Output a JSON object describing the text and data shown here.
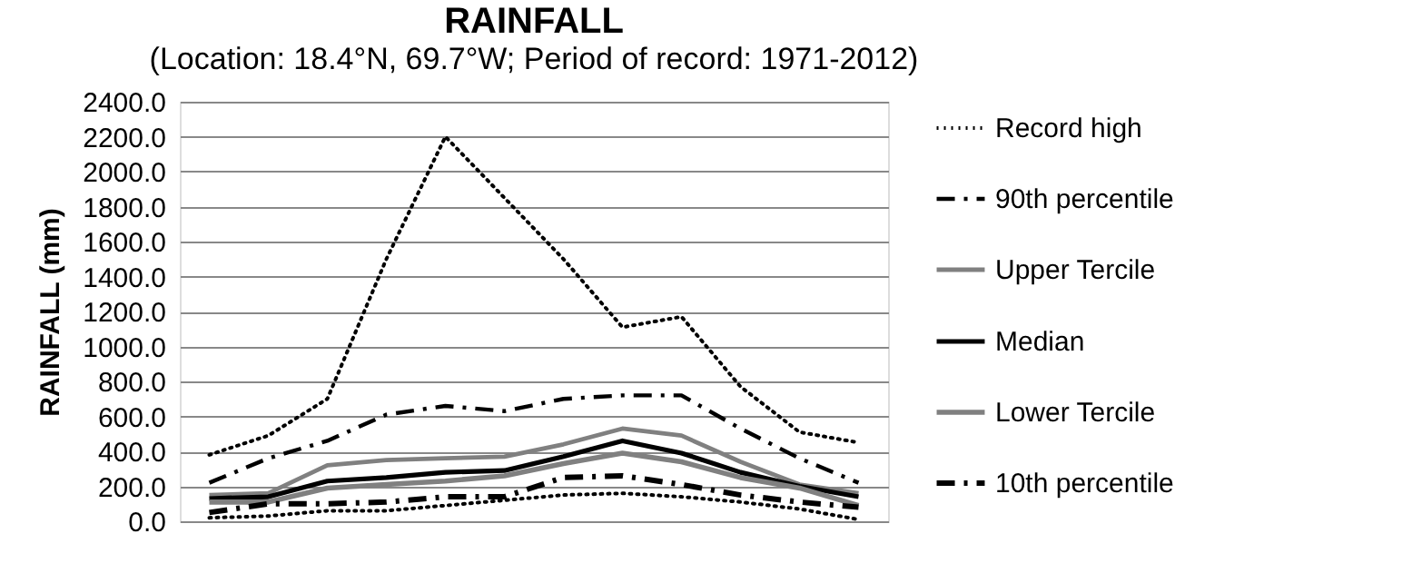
{
  "chart_data": {
    "type": "line",
    "title": "RAINFALL",
    "subtitle": "(Location: 18.4°N, 69.7°W; Period of record: 1971-2012)",
    "ylabel": "RAINFALL (mm)",
    "categories": [
      null,
      null,
      null,
      null,
      null,
      null,
      null,
      null,
      null,
      null,
      null,
      null
    ],
    "ylim": [
      0,
      2400
    ],
    "yticks": [
      {
        "value": 0,
        "label": "0.0"
      },
      {
        "value": 200,
        "label": "200.0"
      },
      {
        "value": 400,
        "label": "400.0"
      },
      {
        "value": 600,
        "label": "600.0"
      },
      {
        "value": 800,
        "label": "800.0"
      },
      {
        "value": 1000,
        "label": "1000.0"
      },
      {
        "value": 1200,
        "label": "1200.0"
      },
      {
        "value": 1400,
        "label": "1400.0"
      },
      {
        "value": 1600,
        "label": "1600.0"
      },
      {
        "value": 1800,
        "label": "1800.0"
      },
      {
        "value": 2000,
        "label": "2000.0"
      },
      {
        "value": 2200,
        "label": "2200.0"
      },
      {
        "value": 2400,
        "label": "2400.0"
      }
    ],
    "grid": "y",
    "legend": "right",
    "tick_labels": "y",
    "series": [
      {
        "name": "Record high",
        "color": "#000000",
        "line_style": "dotted",
        "values": [
          380,
          490,
          700,
          1500,
          2200,
          1850,
          1500,
          1110,
          1170,
          770,
          510,
          450
        ]
      },
      {
        "name": "90th percentile",
        "color": "#000000",
        "line_style": "dashed",
        "values": [
          220,
          360,
          460,
          610,
          660,
          630,
          700,
          720,
          720,
          530,
          360,
          220
        ]
      },
      {
        "name": "Upper Tercile",
        "color": "#808080",
        "line_style": "solid",
        "values": [
          150,
          160,
          320,
          350,
          360,
          370,
          440,
          530,
          490,
          340,
          210,
          160
        ]
      },
      {
        "name": "Median",
        "color": "#000000",
        "line_style": "solid",
        "values": [
          130,
          140,
          230,
          250,
          280,
          290,
          370,
          460,
          390,
          280,
          200,
          140
        ]
      },
      {
        "name": "Lower Tercile",
        "color": "#808080",
        "line_style": "solid",
        "values": [
          110,
          110,
          190,
          210,
          230,
          260,
          330,
          390,
          340,
          250,
          190,
          90
        ]
      },
      {
        "name": "10th percentile",
        "color": "#000000",
        "line_style": "dashed",
        "values": [
          50,
          100,
          100,
          110,
          140,
          140,
          250,
          260,
          210,
          150,
          110,
          80
        ]
      },
      {
        "color": "#000000",
        "line_style": "dotted",
        "values": [
          20,
          30,
          60,
          60,
          90,
          120,
          150,
          160,
          140,
          110,
          70,
          10
        ]
      }
    ]
  }
}
